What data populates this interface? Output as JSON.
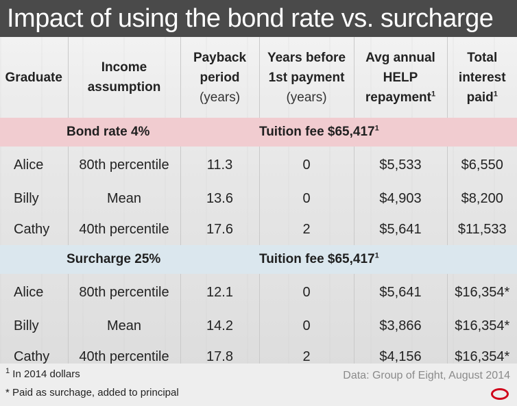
{
  "title": "Impact of using the bond rate vs. surcharge",
  "headers": {
    "graduate": "Graduate",
    "income_line1": "Income",
    "income_line2": "assumption",
    "payback_line1": "Payback",
    "payback_line2": "period",
    "payback_unit": "(years)",
    "years_line1": "Years before",
    "years_line2": "1st payment",
    "years_unit": "(years)",
    "avg_line1": "Avg annual",
    "avg_line2": "HELP",
    "avg_line3": "repayment",
    "avg_sup": "1",
    "total_line1": "Total",
    "total_line2": "interest",
    "total_line3": "paid",
    "total_sup": "1"
  },
  "sections": [
    {
      "label": "Bond rate 4%",
      "tuition": "Tuition fee $65,417",
      "tuition_sup": "1",
      "color": "#f1ccd0",
      "rows": [
        {
          "name": "Alice",
          "income": "80th percentile",
          "payback": "11.3",
          "years": "0",
          "avg": "$5,533",
          "total": "$6,550"
        },
        {
          "name": "Billy",
          "income": "Mean",
          "payback": "13.6",
          "years": "0",
          "avg": "$4,903",
          "total": "$8,200"
        },
        {
          "name": "Cathy",
          "income": "40th percentile",
          "payback": "17.6",
          "years": "2",
          "avg": "$5,641",
          "total": "$11,533"
        }
      ]
    },
    {
      "label": "Surcharge 25%",
      "tuition": "Tuition fee $65,417",
      "tuition_sup": "1",
      "color": "#dbe7ee",
      "rows": [
        {
          "name": "Alice",
          "income": "80th percentile",
          "payback": "12.1",
          "years": "0",
          "avg": "$5,641",
          "total": "$16,354*"
        },
        {
          "name": "Billy",
          "income": "Mean",
          "payback": "14.2",
          "years": "0",
          "avg": "$3,866",
          "total": "$16,354*"
        },
        {
          "name": "Cathy",
          "income": "40th percentile",
          "payback": "17.8",
          "years": "2",
          "avg": "$4,156",
          "total": "$16,354*"
        }
      ]
    }
  ],
  "footnotes": {
    "note1_sup": "1",
    "note1": "In 2014 dollars",
    "note2": "* Paid as surchage, added to principal",
    "source": "Data: Group of Eight, August 2014"
  },
  "logo": {
    "icon": "conversation-logo-icon",
    "color": "#d0021b"
  }
}
